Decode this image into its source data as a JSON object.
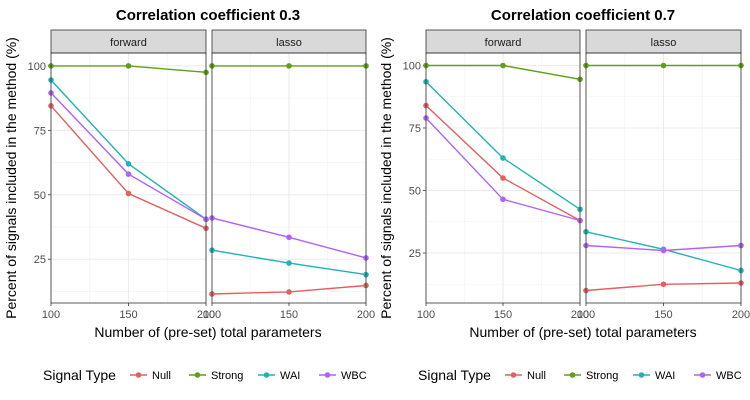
{
  "colors": {
    "Null": "#e4605e",
    "Strong": "#5fa015",
    "WAI": "#1fb3b3",
    "WBC": "#b062f5",
    "strip_fill": "#d9d9d9",
    "grid": "#ebebeb"
  },
  "legend": {
    "title": "Signal Type",
    "items": [
      "Null",
      "Strong",
      "WAI",
      "WBC"
    ]
  },
  "chart_data": [
    {
      "type": "line",
      "title": "Correlation coefficient 0.3",
      "xlabel": "Number of (pre-set) total parameters",
      "ylabel": "Percent of signals included in the method (%)",
      "x": [
        100,
        150,
        200
      ],
      "xticks": [
        "100",
        "150",
        "200"
      ],
      "ylim": [
        8,
        105
      ],
      "yticks": [
        25,
        50,
        75,
        100
      ],
      "yticklabels": [
        "25",
        "50",
        "75",
        "100"
      ],
      "grid": true,
      "legend_position": "bottom",
      "facets": [
        {
          "label": "forward",
          "series": [
            {
              "name": "Null",
              "values": [
                84.5,
                50.5,
                37
              ]
            },
            {
              "name": "Strong",
              "values": [
                100,
                100,
                97.5
              ]
            },
            {
              "name": "WAI",
              "values": [
                94.5,
                62,
                40.5
              ]
            },
            {
              "name": "WBC",
              "values": [
                89.5,
                58,
                40.5
              ]
            }
          ]
        },
        {
          "label": "lasso",
          "series": [
            {
              "name": "Null",
              "values": [
                11.5,
                12.3,
                14.8
              ]
            },
            {
              "name": "Strong",
              "values": [
                100,
                100,
                100
              ]
            },
            {
              "name": "WAI",
              "values": [
                28.5,
                23.5,
                19
              ]
            },
            {
              "name": "WBC",
              "values": [
                41,
                33.5,
                25.5
              ]
            }
          ]
        }
      ]
    },
    {
      "type": "line",
      "title": "Correlation coefficient 0.7",
      "xlabel": "Number of (pre-set) total parameters",
      "ylabel": "Percent of signals included in the method (%)",
      "x": [
        100,
        150,
        200
      ],
      "xticks": [
        "100",
        "150",
        "200"
      ],
      "ylim": [
        5,
        105
      ],
      "yticks": [
        25,
        50,
        75,
        100
      ],
      "yticklabels": [
        "25",
        "50",
        "75",
        "100"
      ],
      "grid": true,
      "legend_position": "bottom",
      "facets": [
        {
          "label": "forward",
          "series": [
            {
              "name": "Null",
              "values": [
                84,
                55,
                38
              ]
            },
            {
              "name": "Strong",
              "values": [
                100,
                100,
                94.5
              ]
            },
            {
              "name": "WAI",
              "values": [
                93.5,
                63,
                42.5
              ]
            },
            {
              "name": "WBC",
              "values": [
                79,
                46.5,
                38
              ]
            }
          ]
        },
        {
          "label": "lasso",
          "series": [
            {
              "name": "Null",
              "values": [
                10,
                12.5,
                13
              ]
            },
            {
              "name": "Strong",
              "values": [
                100,
                100,
                100
              ]
            },
            {
              "name": "WAI",
              "values": [
                33.5,
                26.5,
                18
              ]
            },
            {
              "name": "WBC",
              "values": [
                28,
                26,
                28
              ]
            }
          ]
        }
      ]
    }
  ]
}
